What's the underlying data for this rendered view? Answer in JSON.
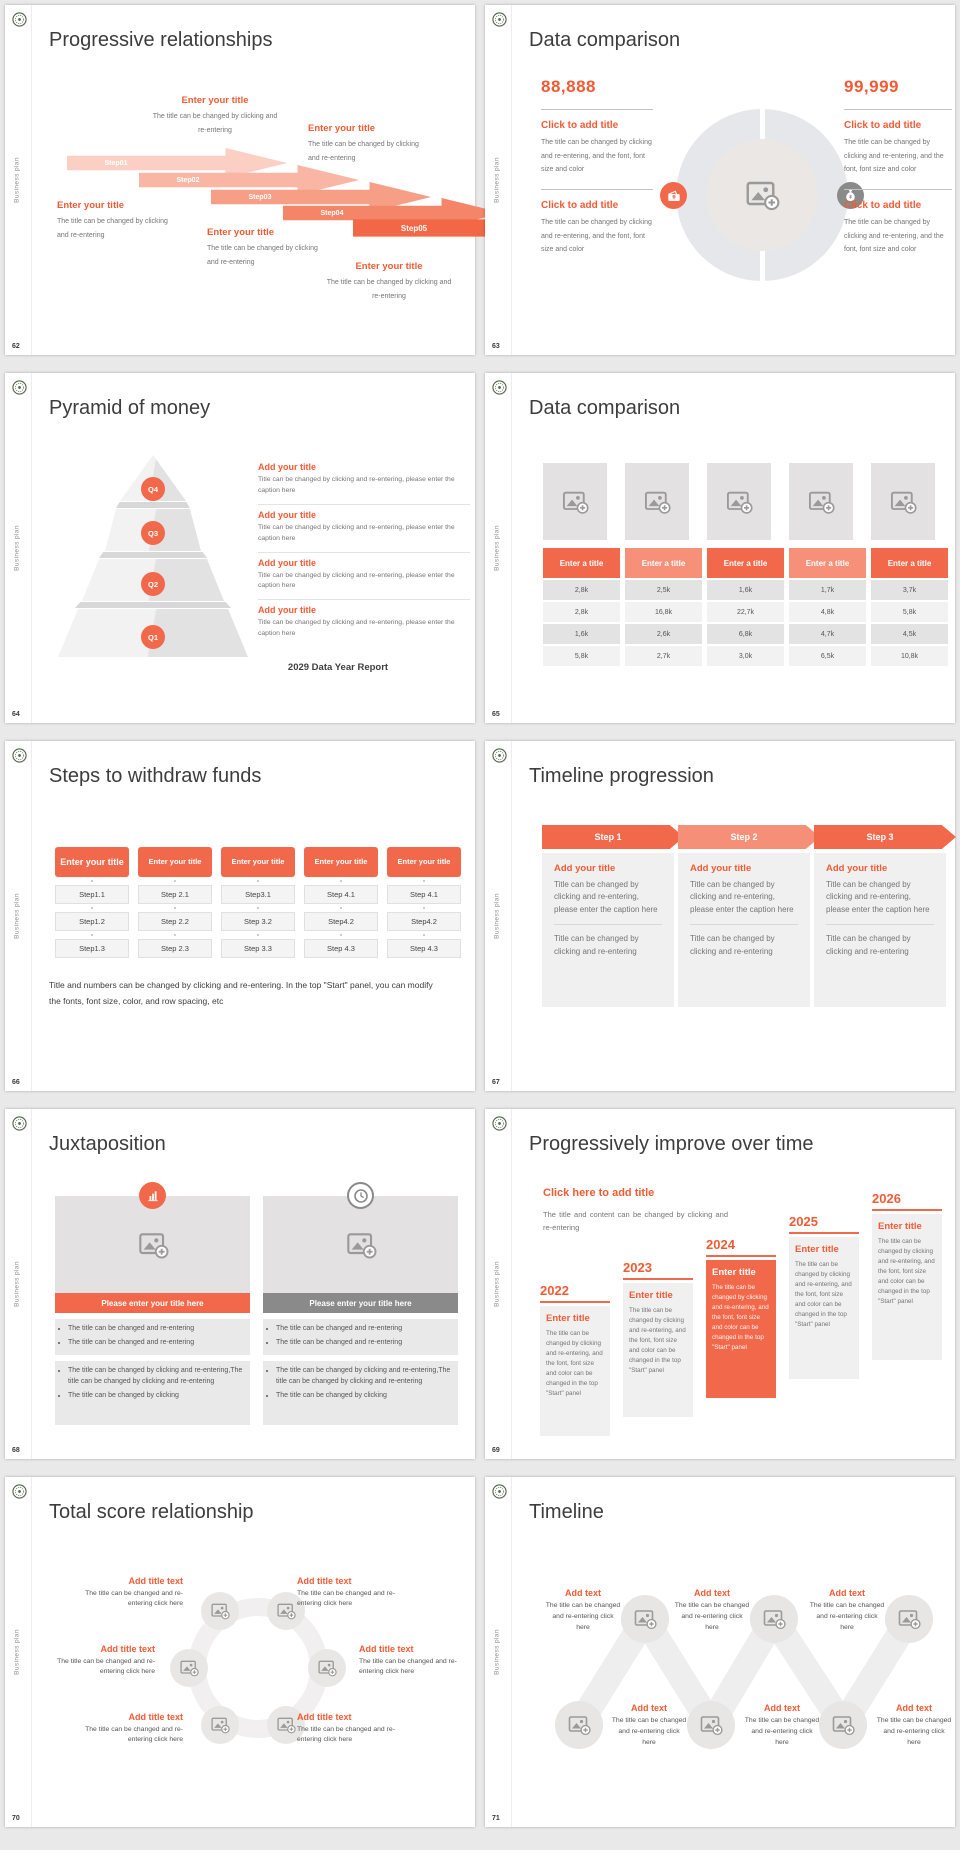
{
  "page": {
    "background": "#e9e9e9",
    "accent": "#f2684a",
    "accent_text": "#f15b34",
    "dark_bar": "#8a8a8a"
  },
  "common": {
    "sidebar_label": "Business plan",
    "logo_icon": "seal-logo-icon"
  },
  "slides": {
    "s62": {
      "number": "62",
      "title": "Progressive relationships",
      "steps": [
        "Step01",
        "Step02",
        "Step03",
        "Step04",
        "Step05"
      ],
      "block_heading": "Enter your title",
      "block_body": "The title can be changed by clicking and re-entering"
    },
    "s63": {
      "number": "63",
      "title": "Data comparison",
      "value_left": "88,888",
      "value_right": "99,999",
      "item_heading": "Click to add title",
      "item_body": "The title can be changed by clicking and re-entering, and the font, font size and color",
      "left_badge_icon": "wallet-icon",
      "right_badge_icon": "money-bag-icon",
      "center_icon": "image-placeholder-icon"
    },
    "s64": {
      "number": "64",
      "title": "Pyramid of money",
      "levels": [
        "Q4",
        "Q3",
        "Q2",
        "Q1"
      ],
      "item_heading": "Add your title",
      "item_body": "Title can be changed by clicking and re-entering, please enter the caption here",
      "footer": "2029 Data Year Report"
    },
    "s65": {
      "number": "65",
      "title": "Data comparison",
      "column_header": "Enter a title",
      "rows": [
        [
          "2,8k",
          "2,5k",
          "1,6k",
          "1,7k",
          "3,7k"
        ],
        [
          "2,8k",
          "16,8k",
          "22,7k",
          "4,8k",
          "5,8k"
        ],
        [
          "1,6k",
          "2,6k",
          "6,8k",
          "4,7k",
          "4,5k"
        ],
        [
          "5,8k",
          "2,7k",
          "3,0k",
          "6,5k",
          "10,8k"
        ]
      ]
    },
    "s66": {
      "number": "66",
      "title": "Steps to withdraw funds",
      "column_header": "Enter your title",
      "columns": [
        [
          "Step1.1",
          "Step1.2",
          "Step1.3"
        ],
        [
          "Step 2.1",
          "Step 2.2",
          "Step 2.3"
        ],
        [
          "Step3.1",
          "Step 3.2",
          "Step 3.3"
        ],
        [
          "Step 4.1",
          "Step4.2",
          "Step 4.3"
        ],
        [
          "Step 4.1",
          "Step4.2",
          "Step 4.3"
        ]
      ],
      "note": "Title and numbers can be changed by clicking and re-entering. In the top \"Start\" panel, you can modify the fonts, font size, color, and row spacing, etc"
    },
    "s67": {
      "number": "67",
      "title": "Timeline progression",
      "steps": [
        "Step 1",
        "Step 2",
        "Step 3"
      ],
      "panel_heading": "Add your title",
      "panel_body1": "Title can be changed by clicking and re-entering, please enter the caption here",
      "panel_body2": "Title can be changed by clicking and re-entering"
    },
    "s68": {
      "number": "68",
      "title": "Juxtaposition",
      "bar_label": "Please enter your title here",
      "bullet_short": "The title can be changed and re-entering",
      "bullet_long": "The title can be changed by clicking and re-entering,The title can be changed by clicking and re-entering",
      "bullet_click": "The title can be changed by clicking",
      "left_badge_icon": "bar-chart-icon",
      "right_badge_icon": "clock-icon"
    },
    "s69": {
      "number": "69",
      "title": "Progressively improve over time",
      "heading": "Click here to add title",
      "subheading": "The title and content can be changed by clicking and re-entering",
      "years": [
        "2022",
        "2023",
        "2024",
        "2025",
        "2026"
      ],
      "card_heading": "Enter title",
      "card_body": "The title can be changed by clicking and re-entering, and the font, font size and color can be changed in the top \"Start\" panel"
    },
    "s70": {
      "number": "70",
      "title": "Total score relationship",
      "item_heading": "Add title text",
      "item_body": "The title can be changed and re-entering click here"
    },
    "s71": {
      "number": "71",
      "title": "Timeline",
      "item_heading": "Add text",
      "item_body": "The title can be changed and re-entering click here"
    }
  }
}
